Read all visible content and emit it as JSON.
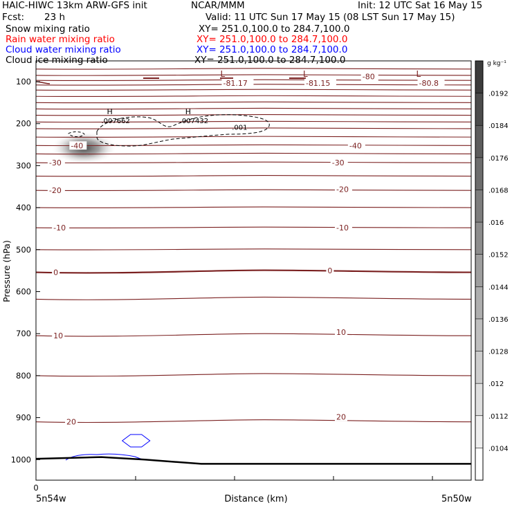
{
  "header": {
    "model": "HAIC-HIWC 13km ARW-GFS init",
    "org": "NCAR/MMM",
    "init": "Init: 12 UTC Sat 16 May 15",
    "fcst_label": "Fcst:",
    "fcst_value": "23 h",
    "valid": "Valid: 11 UTC Sun 17 May 15 (08 LST Sun 17 May 15)"
  },
  "fields": [
    {
      "name": "Snow mixing ratio",
      "xy": "XY= 251.0,100.0 to 284.7,100.0",
      "color": "#000000"
    },
    {
      "name": "Rain water mixing ratio",
      "xy": "XY= 251.0,100.0 to 284.7,100.0",
      "color": "#ff0000"
    },
    {
      "name": "Cloud water mixing ratio",
      "xy": "XY= 251.0,100.0 to 284.7,100.0",
      "color": "#0000ff"
    },
    {
      "name": "Cloud ice mixing ratio",
      "xy": "XY= 251.0,100.0 to 284.7,100.0",
      "color": "#000000"
    }
  ],
  "chart_data": {
    "type": "contour cross-section",
    "ylabel": "Pressure (hPa)",
    "xlabel": "Distance (km)",
    "x_start_tick": "0",
    "x_left_label": "5n54w",
    "x_right_label": "5n50w",
    "y_ticks": [
      100,
      200,
      300,
      400,
      500,
      600,
      700,
      800,
      900,
      1000
    ],
    "ylim": [
      1050,
      70
    ],
    "xlim": [
      0,
      1
    ],
    "temp_color": "#7a1f1f",
    "temperature_labels": [
      {
        "text": "-81.17",
        "x": 0.43,
        "p": 103
      },
      {
        "text": "-81.15",
        "x": 0.62,
        "p": 103
      },
      {
        "text": "-80.8",
        "x": 0.88,
        "p": 103
      },
      {
        "text": "-80",
        "x": 0.75,
        "p": 88
      },
      {
        "text": "-40",
        "x": 0.08,
        "p": 252
      },
      {
        "text": "-40",
        "x": 0.72,
        "p": 252
      },
      {
        "text": "-30",
        "x": 0.03,
        "p": 293
      },
      {
        "text": "-30",
        "x": 0.68,
        "p": 293
      },
      {
        "text": "-20",
        "x": 0.03,
        "p": 359
      },
      {
        "text": "-20",
        "x": 0.69,
        "p": 356
      },
      {
        "text": "-10",
        "x": 0.04,
        "p": 448
      },
      {
        "text": "-10",
        "x": 0.69,
        "p": 448
      },
      {
        "text": "0",
        "x": 0.04,
        "p": 554
      },
      {
        "text": "0",
        "x": 0.67,
        "p": 550
      },
      {
        "text": "10",
        "x": 0.04,
        "p": 705
      },
      {
        "text": "10",
        "x": 0.69,
        "p": 696
      },
      {
        "text": "20",
        "x": 0.07,
        "p": 910
      },
      {
        "text": "20",
        "x": 0.69,
        "p": 898
      }
    ],
    "low_markers": [
      {
        "text": "L",
        "x": 0.43,
        "p": 82
      },
      {
        "text": "L",
        "x": 0.62,
        "p": 82
      },
      {
        "text": "L",
        "x": 0.88,
        "p": 82
      }
    ],
    "ice_maxima": [
      {
        "marker": "H",
        "value": ".007662",
        "x": 0.19,
        "p": 202
      },
      {
        "marker": "H",
        "value": ".007432",
        "x": 0.37,
        "p": 202
      },
      {
        "marker": "",
        "value": ".001",
        "x": 0.49,
        "p": 218
      }
    ],
    "isotherm_pressures": [
      70,
      85,
      97,
      108,
      120,
      135,
      150,
      165,
      180,
      196,
      212,
      232,
      252,
      272,
      293,
      325,
      359,
      400,
      448,
      500,
      554,
      618,
      705,
      800,
      910
    ],
    "snow_maximum": {
      "x": 0.11,
      "p": 258
    },
    "cloud_water": [
      {
        "x": 0.23,
        "p": 955
      },
      {
        "x": 0.14,
        "p": 988
      }
    ],
    "surface_pressure": [
      {
        "x": 0,
        "p": 998
      },
      {
        "x": 0.15,
        "p": 994
      },
      {
        "x": 0.25,
        "p": 1000
      },
      {
        "x": 0.38,
        "p": 1010
      },
      {
        "x": 1,
        "p": 1010
      }
    ],
    "colorbar": {
      "unit": "g kg⁻¹",
      "ticks": [
        ".0192",
        ".0184",
        ".0176",
        ".0168",
        ".016",
        ".0152",
        ".0144",
        ".0136",
        ".0128",
        ".012",
        ".0112",
        ".0104"
      ]
    }
  }
}
